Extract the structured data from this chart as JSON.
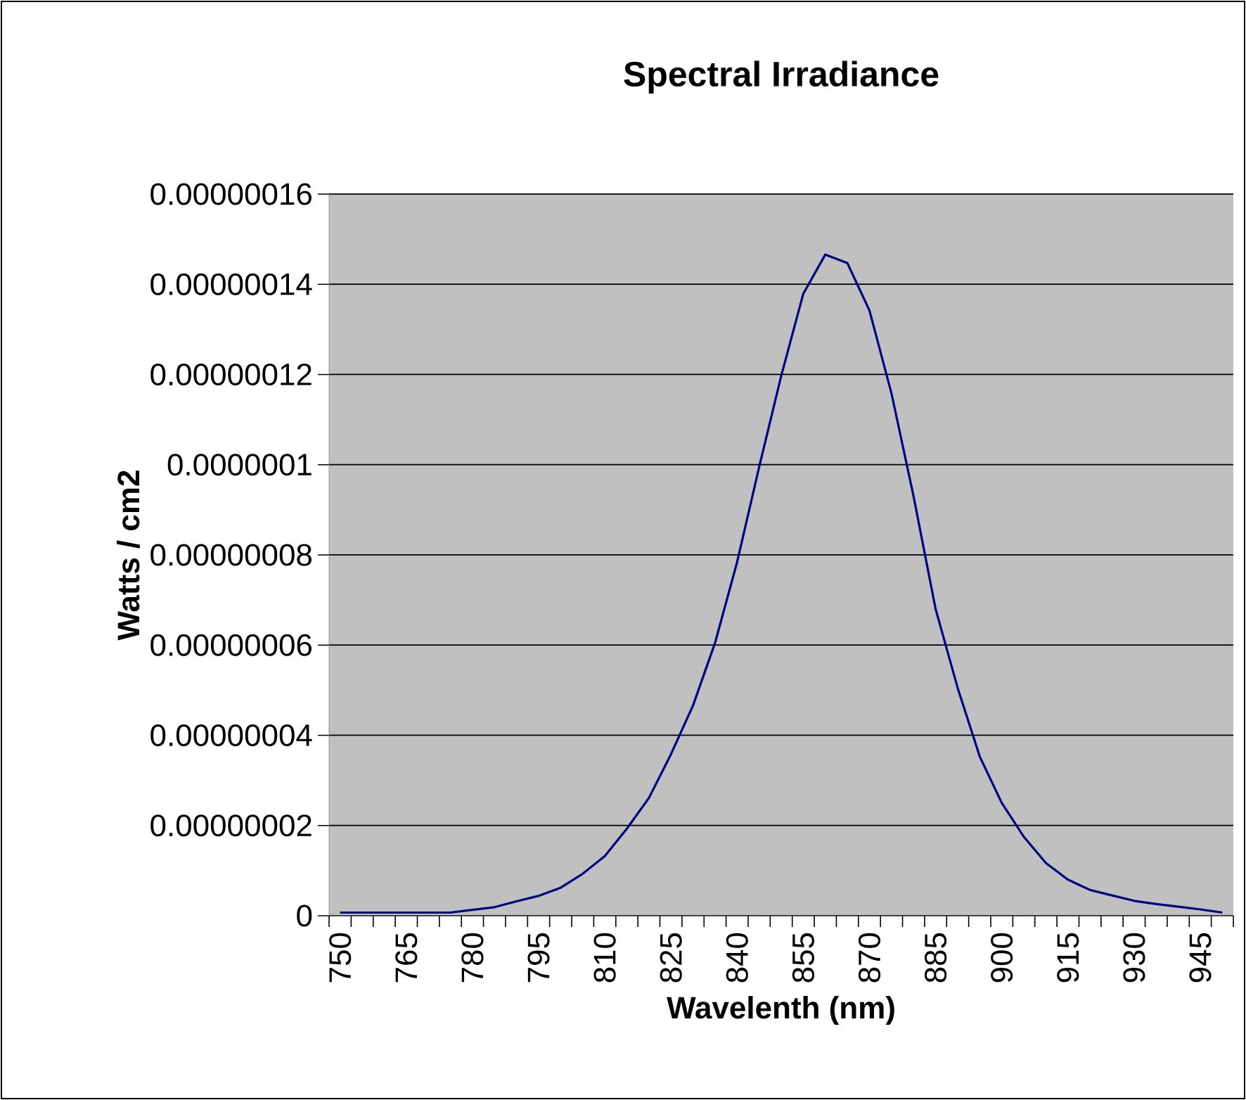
{
  "chart_data": {
    "type": "line",
    "title": "Spectral Irradiance",
    "xlabel": "Wavelenth (nm)",
    "ylabel": "Watts / cm2",
    "categories": [
      "750",
      null,
      null,
      "765",
      null,
      null,
      "780",
      null,
      null,
      "795",
      null,
      null,
      "810",
      null,
      null,
      "825",
      null,
      null,
      "840",
      null,
      null,
      "855",
      null,
      null,
      "870",
      null,
      null,
      "885",
      null,
      null,
      "900",
      null,
      null,
      "915",
      null,
      null,
      "930",
      null,
      null,
      "945",
      null
    ],
    "series": [
      {
        "color": "#000080",
        "values": [
          7e-10,
          7e-10,
          7e-10,
          7e-10,
          7e-10,
          7e-10,
          1.3e-09,
          1.9e-09,
          3.2e-09,
          4.4e-09,
          6.2e-09,
          9.3e-09,
          1.32e-08,
          1.93e-08,
          2.61e-08,
          3.58e-08,
          4.66e-08,
          6.05e-08,
          7.84e-08,
          9.95e-08,
          1.197e-07,
          1.379e-07,
          1.466e-07,
          1.447e-07,
          1.342e-07,
          1.158e-07,
          9.3e-08,
          6.8e-08,
          5.05e-08,
          3.53e-08,
          2.5e-08,
          1.75e-08,
          1.17e-08,
          8e-09,
          5.7e-09,
          4.5e-09,
          3.3e-09,
          2.6e-09,
          2e-09,
          1.4e-09,
          7e-10
        ]
      }
    ],
    "ylim": [
      0,
      1.6e-07
    ],
    "yticks": [
      {
        "value": 0,
        "label": "0"
      },
      {
        "value": 2e-08,
        "label": "0.00000002"
      },
      {
        "value": 4e-08,
        "label": "0.00000004"
      },
      {
        "value": 6e-08,
        "label": "0.00000006"
      },
      {
        "value": 8e-08,
        "label": "0.00000008"
      },
      {
        "value": 1e-07,
        "label": "0.0000001"
      },
      {
        "value": 1.2e-07,
        "label": "0.00000012"
      },
      {
        "value": 1.4e-07,
        "label": "0.00000014"
      },
      {
        "value": 1.6e-07,
        "label": "0.00000016"
      }
    ],
    "grid": "y",
    "marker": "none",
    "line_style": "solid"
  }
}
